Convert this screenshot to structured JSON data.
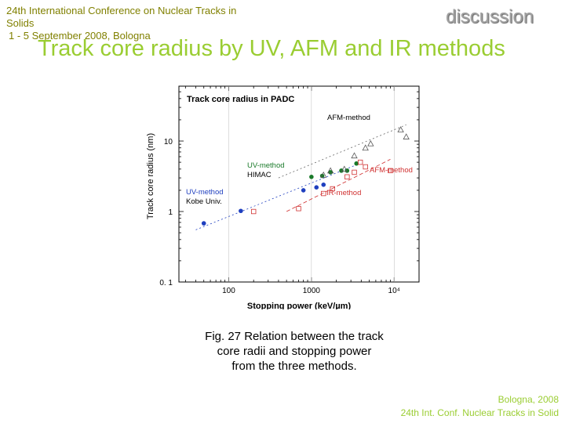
{
  "slide": {
    "conference_line1": "24th International Conference on Nuclear Tracks in",
    "conference_line2": "Solids",
    "conference_line3": "1 - 5 September 2008, Bologna",
    "section_label": "discussion",
    "title": "Track core radius by UV, AFM and IR methods",
    "caption_line1": "Fig. 27 Relation between the track",
    "caption_line2": "core radii and stopping power",
    "caption_line3": "from the three methods.",
    "footer_line1": "Bologna,  2008",
    "footer_line2": "24th Int. Conf. Nuclear Tracks in Solid"
  },
  "colors": {
    "accent_green": "#9acd32",
    "conference_text": "#808000",
    "uv_kobe": "#1f3fbf",
    "uv_himac": "#1a7a2a",
    "afm": "#555555",
    "ir": "#d03030"
  },
  "chart_data": {
    "type": "scatter",
    "title": "Track core radius in PADC",
    "xlabel": "Stopping power (keV/µm)",
    "ylabel": "Track core radius (nm)",
    "x_scale": "log",
    "y_scale": "log",
    "xlim": [
      25,
      20000
    ],
    "ylim": [
      0.1,
      60
    ],
    "x_ticks": [
      100,
      1000,
      10000
    ],
    "x_tick_labels": [
      "100",
      "1000",
      "10⁴"
    ],
    "y_ticks": [
      0.1,
      1,
      10
    ],
    "y_tick_labels": [
      "0. 1",
      "1",
      "10"
    ],
    "grid": false,
    "series": [
      {
        "name": "UV-method Kobe Univ.",
        "marker": "filled-circle",
        "color": "#1f3fbf",
        "x": [
          50,
          140,
          800,
          1150,
          1400
        ],
        "y": [
          0.68,
          1.02,
          2.0,
          2.2,
          2.4
        ]
      },
      {
        "name": "UV-method HIMAC",
        "marker": "filled-circle",
        "color": "#1a7a2a",
        "x": [
          1000,
          1350,
          1700,
          2300,
          2700,
          3500
        ],
        "y": [
          3.1,
          3.2,
          3.6,
          3.8,
          3.8,
          4.8
        ]
      },
      {
        "name": "AFM-method",
        "marker": "open-triangle",
        "color": "#555555",
        "x": [
          1400,
          1700,
          2500,
          3300,
          4500,
          5200,
          12000,
          14000
        ],
        "y": [
          3.3,
          3.8,
          4.0,
          6.2,
          8.0,
          9.2,
          14.5,
          11.5
        ]
      },
      {
        "name": "IR-method",
        "marker": "open-square",
        "color": "#d03030",
        "x": [
          200,
          700,
          1400,
          1800,
          2700,
          3300,
          3900,
          4500,
          9000
        ],
        "y": [
          1.0,
          1.1,
          1.8,
          2.1,
          3.1,
          3.6,
          5.0,
          4.3,
          3.8
        ]
      }
    ],
    "annotations": [
      {
        "text": "AFM-method",
        "color": "#000000"
      },
      {
        "text": "UV-method",
        "color": "#1a7a2a"
      },
      {
        "text": "HIMAC",
        "color": "#000000"
      },
      {
        "text": "AFM-method",
        "color": "#d03030"
      },
      {
        "text": "IR-method",
        "color": "#d03030"
      },
      {
        "text": "UV-method",
        "color": "#1f3fbf"
      },
      {
        "text": "Kobe Univ.",
        "color": "#000000"
      }
    ]
  }
}
